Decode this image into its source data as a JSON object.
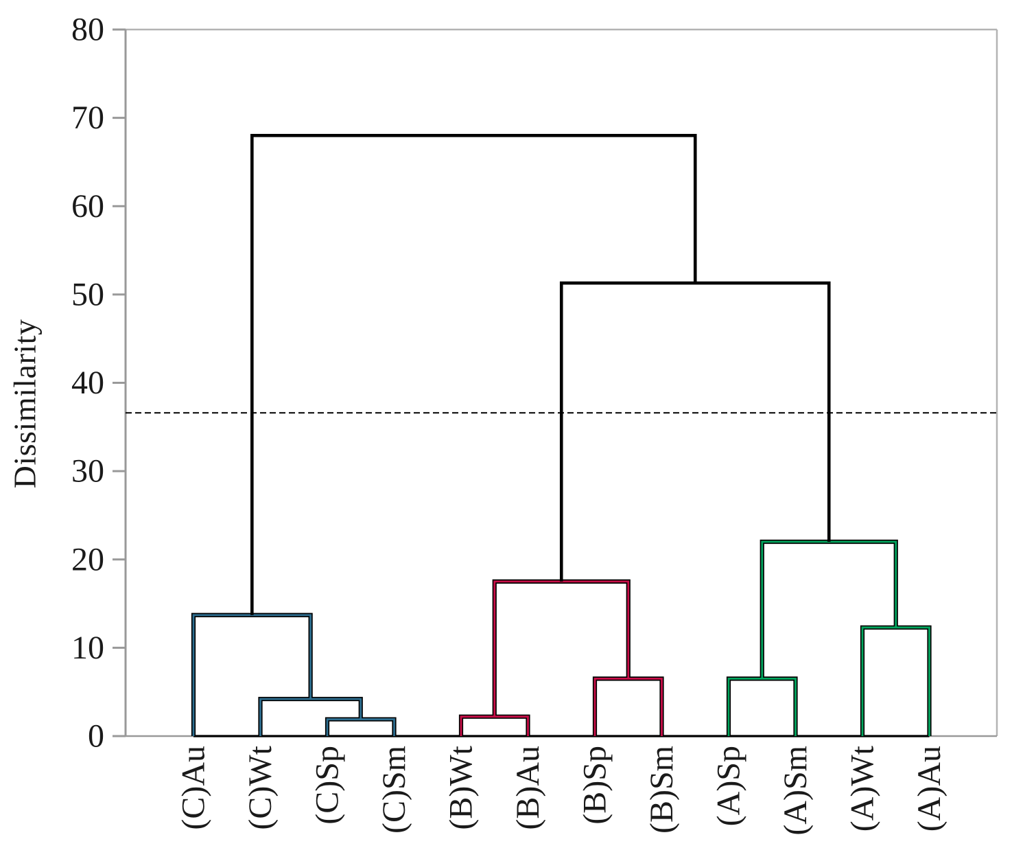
{
  "chart_data": {
    "type": "dendrogram",
    "title": "",
    "ylabel": "Dissimilarity",
    "xlabel": "",
    "ylim": [
      0,
      80
    ],
    "yticks": [
      0,
      10,
      20,
      30,
      40,
      50,
      60,
      70,
      80
    ],
    "grid": "off",
    "legend": null,
    "x_labels_rotated_90": true,
    "leaves": [
      "(C)Au",
      "(C)Wt",
      "(C)Sp",
      "(C)Sm",
      "(B)Wt",
      "(B)Au",
      "(B)Sp",
      "(B)Sm",
      "(A)Sp",
      "(A)Sm",
      "(A)Wt",
      "(A)Au"
    ],
    "merges": [
      {
        "id": "C1",
        "children": [
          "(C)Sp",
          "(C)Sm"
        ],
        "height": 1.9,
        "color_key": "cluster_c"
      },
      {
        "id": "C2",
        "children": [
          "(C)Wt",
          "C1"
        ],
        "height": 4.2,
        "color_key": "cluster_c"
      },
      {
        "id": "C3",
        "children": [
          "(C)Au",
          "C2"
        ],
        "height": 13.7,
        "color_key": "cluster_c"
      },
      {
        "id": "B1",
        "children": [
          "(B)Wt",
          "(B)Au"
        ],
        "height": 2.2,
        "color_key": "cluster_b"
      },
      {
        "id": "B2",
        "children": [
          "(B)Sp",
          "(B)Sm"
        ],
        "height": 6.5,
        "color_key": "cluster_b"
      },
      {
        "id": "B3",
        "children": [
          "B1",
          "B2"
        ],
        "height": 17.5,
        "color_key": "cluster_b"
      },
      {
        "id": "A1",
        "children": [
          "(A)Sp",
          "(A)Sm"
        ],
        "height": 6.5,
        "color_key": "cluster_a"
      },
      {
        "id": "A2",
        "children": [
          "(A)Wt",
          "(A)Au"
        ],
        "height": 12.3,
        "color_key": "cluster_a"
      },
      {
        "id": "A3",
        "children": [
          "A1",
          "A2"
        ],
        "height": 22.0,
        "color_key": "cluster_a"
      },
      {
        "id": "R1",
        "children": [
          "B3",
          "A3"
        ],
        "height": 51.3,
        "color_key": "link"
      },
      {
        "id": "R2",
        "children": [
          "C3",
          "R1"
        ],
        "height": 68.0,
        "color_key": "link"
      }
    ],
    "cutoff_line": {
      "value": 36.6,
      "style": "dashed",
      "color": "#000000"
    },
    "colors": {
      "cluster_c": "#2D6E90",
      "cluster_b": "#C80E48",
      "cluster_a": "#00A55E",
      "link": "#000000",
      "axis": "#999999",
      "border": "#b3b3b3",
      "text": "#1a1a1a"
    }
  }
}
